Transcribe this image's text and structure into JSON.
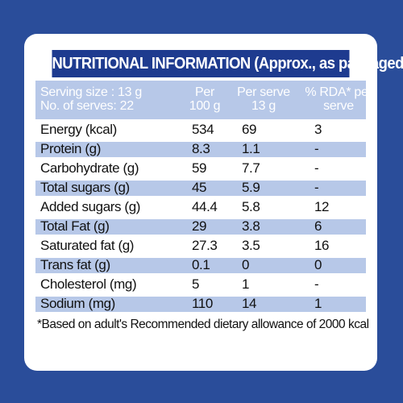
{
  "title": "NUTRITIONAL INFORMATION (Approx., as packaged)",
  "header": {
    "serving_size": "Serving size : 13 g",
    "servings": "No. of serves: 22",
    "per100_line1": "Per",
    "per100_line2": "100 g",
    "perserve_line1": "Per serve",
    "perserve_line2": "13 g",
    "rda_line1": "% RDA* per",
    "rda_line2": "serve"
  },
  "rows": [
    {
      "name": "Energy (kcal)",
      "per100": "534",
      "perserve": "69",
      "rda": "3"
    },
    {
      "name": "Protein (g)",
      "per100": "8.3",
      "perserve": "1.1",
      "rda": "-"
    },
    {
      "name": "Carbohydrate (g)",
      "per100": "59",
      "perserve": "7.7",
      "rda": "-"
    },
    {
      "name": "Total sugars (g)",
      "per100": "45",
      "perserve": "5.9",
      "rda": "-"
    },
    {
      "name": "Added sugars (g)",
      "per100": "44.4",
      "perserve": "5.8",
      "rda": "12"
    },
    {
      "name": "Total Fat (g)",
      "per100": "29",
      "perserve": "3.8",
      "rda": "6"
    },
    {
      "name": "Saturated fat (g)",
      "per100": "27.3",
      "perserve": "3.5",
      "rda": "16"
    },
    {
      "name": "Trans fat (g)",
      "per100": "0.1",
      "perserve": "0",
      "rda": "0"
    },
    {
      "name": "Cholesterol (mg)",
      "per100": "5",
      "perserve": "1",
      "rda": "-"
    },
    {
      "name": "Sodium (mg)",
      "per100": "110",
      "perserve": "14",
      "rda": "1"
    }
  ],
  "footnote": "*Based on adult's Recommended dietary allowance of 2000 kcal",
  "colors": {
    "background": "#2a4d9a",
    "title_bar": "#1e3b8f",
    "shade": "#b7c8e8"
  }
}
